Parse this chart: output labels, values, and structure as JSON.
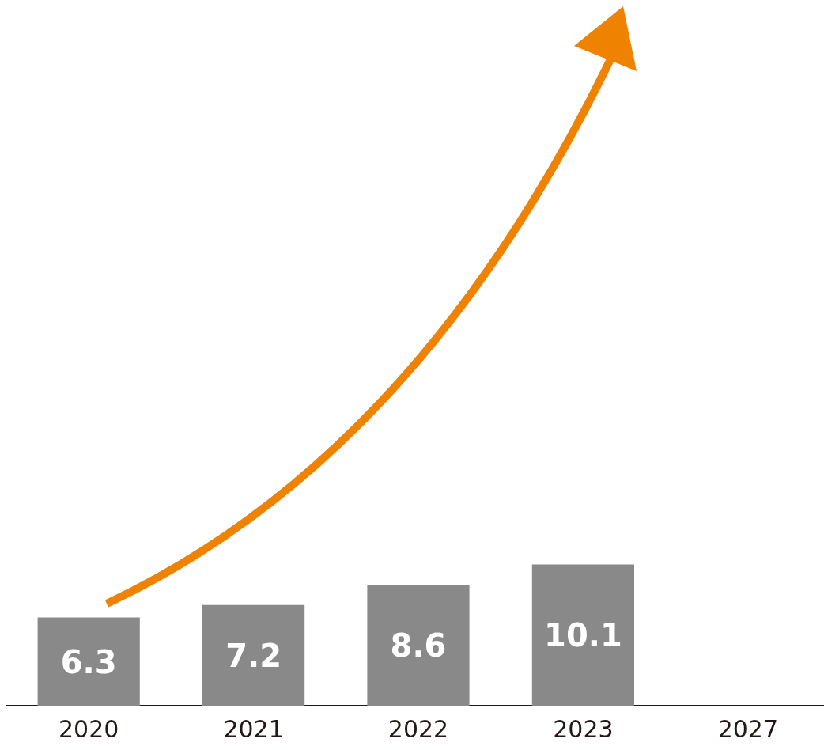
{
  "chart_data": {
    "type": "bar",
    "categories": [
      "2020",
      "2021",
      "2022",
      "2023",
      "2027"
    ],
    "values": [
      6.3,
      7.2,
      8.6,
      10.1,
      null
    ],
    "color": "#898989",
    "data_labels": true,
    "grid": false,
    "legend": false
  }
}
